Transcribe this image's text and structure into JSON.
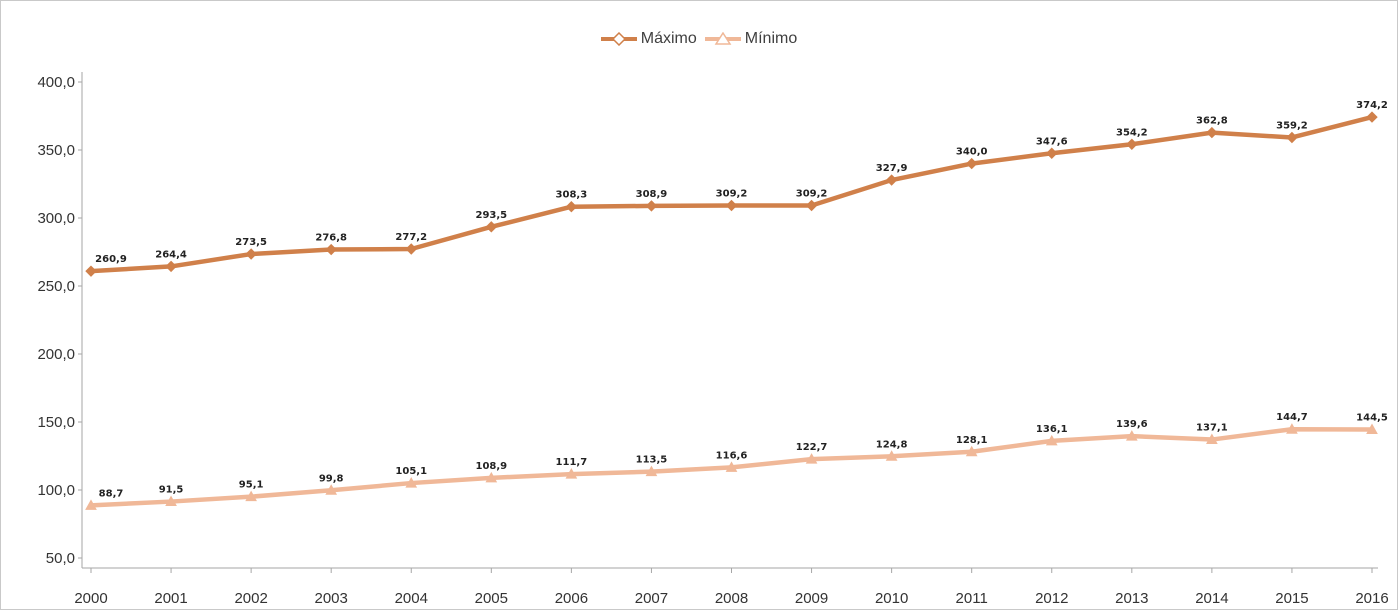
{
  "chart_data": {
    "type": "line",
    "title": "",
    "xlabel": "",
    "ylabel": "",
    "ylim": [
      50,
      400
    ],
    "yticks": [
      "50,0",
      "100,0",
      "150,0",
      "200,0",
      "250,0",
      "300,0",
      "350,0",
      "400,0"
    ],
    "ytick_values": [
      50,
      100,
      150,
      200,
      250,
      300,
      350,
      400
    ],
    "categories": [
      "2000",
      "2001",
      "2002",
      "2003",
      "2004",
      "2005",
      "2006",
      "2007",
      "2008",
      "2009",
      "2010",
      "2011",
      "2012",
      "2013",
      "2014",
      "2015",
      "2016"
    ],
    "grid": false,
    "legend_position": "top-center",
    "series": [
      {
        "name": "Máximo",
        "color": "#d0804a",
        "marker": "diamond",
        "values": [
          260.9,
          264.4,
          273.5,
          276.8,
          277.2,
          293.5,
          308.3,
          308.9,
          309.2,
          309.2,
          327.9,
          340.0,
          347.6,
          354.2,
          362.8,
          359.2,
          374.2
        ],
        "labels": [
          "260,9",
          "264,4",
          "273,5",
          "276,8",
          "277,2",
          "293,5",
          "308,3",
          "308,9",
          "309,2",
          "309,2",
          "327,9",
          "340,0",
          "347,6",
          "354,2",
          "362,8",
          "359,2",
          "374,2"
        ]
      },
      {
        "name": "Mínimo",
        "color": "#f0b898",
        "marker": "triangle",
        "values": [
          88.7,
          91.5,
          95.1,
          99.8,
          105.1,
          108.9,
          111.7,
          113.5,
          116.6,
          122.7,
          124.8,
          128.1,
          136.1,
          139.6,
          137.1,
          144.7,
          144.5
        ],
        "labels": [
          "88,7",
          "91,5",
          "95,1",
          "99,8",
          "105,1",
          "108,9",
          "111,7",
          "113,5",
          "116,6",
          "122,7",
          "124,8",
          "128,1",
          "136,1",
          "139,6",
          "137,1",
          "144,7",
          "144,5"
        ]
      }
    ]
  }
}
